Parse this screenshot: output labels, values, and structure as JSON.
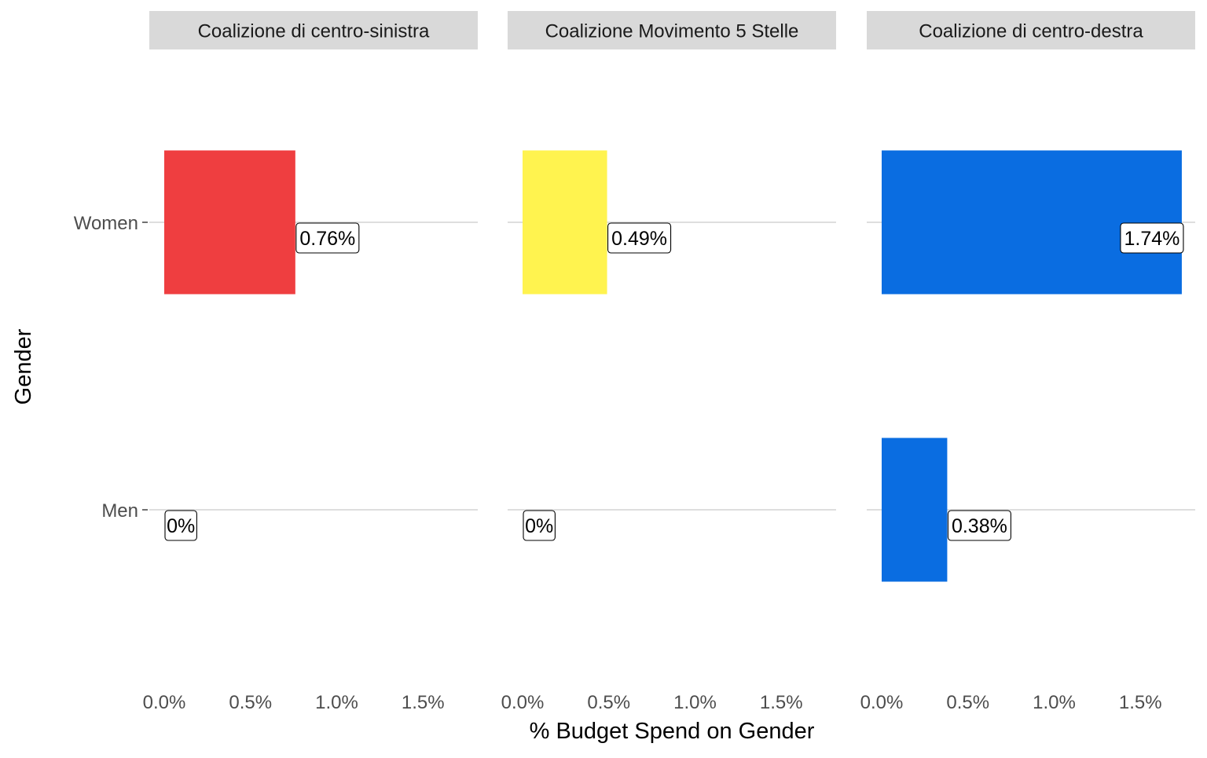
{
  "chart_data": {
    "type": "bar",
    "orientation": "horizontal",
    "facet_by": "coalition",
    "xlabel": "% Budget Spend on Gender",
    "ylabel": "Gender",
    "categories": [
      "Women",
      "Men"
    ],
    "xlim": [
      0,
      1.82
    ],
    "x_ticks": [
      0,
      0.5,
      1.0,
      1.5
    ],
    "x_tick_labels": [
      "0.0%",
      "0.5%",
      "1.0%",
      "1.5%"
    ],
    "grid": "horizontal major lines at categories",
    "legend": "none",
    "panels": [
      {
        "name": "Coalizione di centro-sinistra",
        "color": "#EF3E40",
        "values": [
          0.76,
          0
        ],
        "labels": [
          "0.76%",
          "0%"
        ]
      },
      {
        "name": "Coalizione Movimento 5 Stelle",
        "color": "#FFF34F",
        "values": [
          0.49,
          0
        ],
        "labels": [
          "0.49%",
          "0%"
        ]
      },
      {
        "name": "Coalizione di centro-destra",
        "color": "#0A6DE1",
        "values": [
          1.74,
          0.38
        ],
        "labels": [
          "1.74%",
          "0.38%"
        ]
      }
    ]
  }
}
